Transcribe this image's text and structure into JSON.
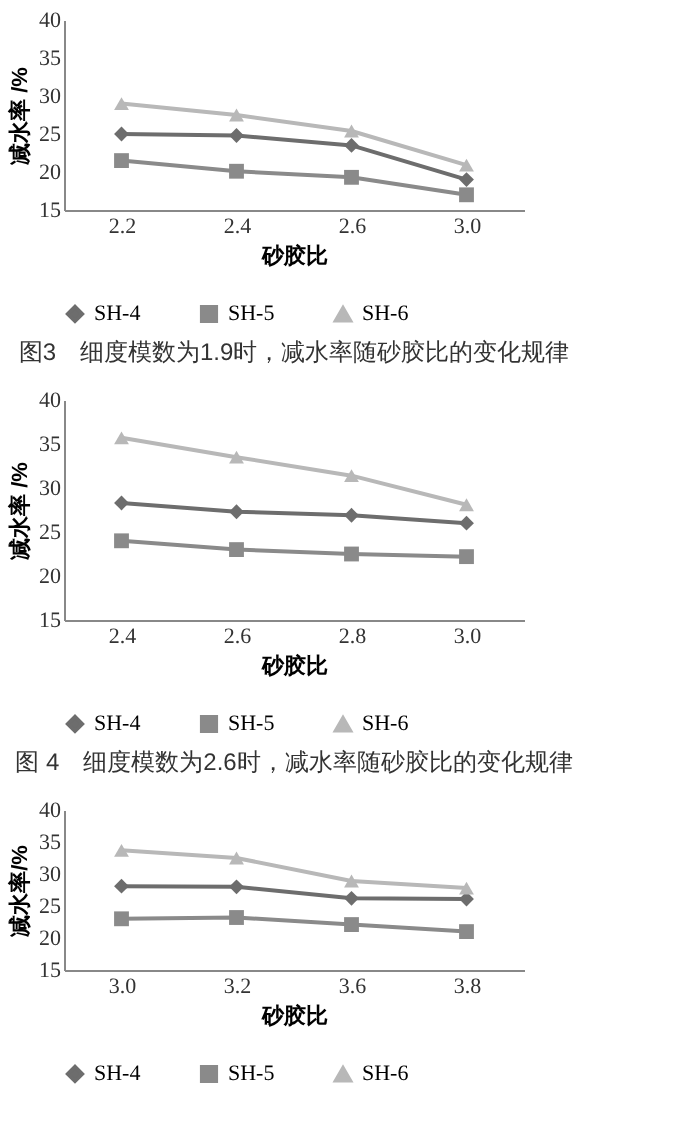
{
  "chart_data": [
    {
      "type": "line",
      "categories": [
        "2.2",
        "2.4",
        "2.6",
        "3.0"
      ],
      "xlabel": "砂胶比",
      "ylabel": "减水率 /%",
      "ylim": [
        15,
        40
      ],
      "yticks": [
        15,
        20,
        25,
        30,
        35,
        40
      ],
      "grid": false,
      "legend": "bottom",
      "series": [
        {
          "name": "SH-4",
          "color": "#6d6d6d",
          "marker": "diamond",
          "values": [
            25,
            24.8,
            23.5,
            19
          ]
        },
        {
          "name": "SH-5",
          "color": "#8a8a8a",
          "marker": "square",
          "values": [
            21.5,
            20.1,
            19.3,
            17
          ]
        },
        {
          "name": "SH-6",
          "color": "#b8b8b8",
          "marker": "triangle",
          "values": [
            29,
            27.5,
            25.4,
            20.9
          ]
        }
      ],
      "annotations": [
        "图3　细度模数为1.9时，减水率随砂胶比的变化规律"
      ]
    },
    {
      "type": "line",
      "categories": [
        "2.4",
        "2.6",
        "2.8",
        "3.0"
      ],
      "xlabel": "砂胶比",
      "ylabel": "减水率 /%",
      "ylim": [
        15,
        40
      ],
      "yticks": [
        15,
        20,
        25,
        30,
        35,
        40
      ],
      "grid": false,
      "legend": "bottom",
      "series": [
        {
          "name": "SH-4",
          "color": "#6d6d6d",
          "marker": "diamond",
          "values": [
            28.3,
            27.3,
            26.9,
            26
          ]
        },
        {
          "name": "SH-5",
          "color": "#8a8a8a",
          "marker": "square",
          "values": [
            24,
            23,
            22.5,
            22.2
          ]
        },
        {
          "name": "SH-6",
          "color": "#b8b8b8",
          "marker": "triangle",
          "values": [
            35.7,
            33.5,
            31.4,
            28.1
          ]
        }
      ],
      "annotations": [
        "图 4　细度模数为2.6时，减水率随砂胶比的变化规律"
      ]
    },
    {
      "type": "line",
      "categories": [
        "3.0",
        "3.2",
        "3.6",
        "3.8"
      ],
      "xlabel": "砂胶比",
      "ylabel": "减水率/%",
      "ylim": [
        15,
        40
      ],
      "yticks": [
        15,
        20,
        25,
        30,
        35,
        40
      ],
      "grid": false,
      "legend": "bottom",
      "series": [
        {
          "name": "SH-4",
          "color": "#6d6d6d",
          "marker": "diamond",
          "values": [
            28.1,
            28,
            26.2,
            26.1
          ]
        },
        {
          "name": "SH-5",
          "color": "#8a8a8a",
          "marker": "square",
          "values": [
            23,
            23.2,
            22.1,
            21
          ]
        },
        {
          "name": "SH-6",
          "color": "#b8b8b8",
          "marker": "triangle",
          "values": [
            33.7,
            32.5,
            28.9,
            27.8
          ]
        }
      ]
    }
  ]
}
